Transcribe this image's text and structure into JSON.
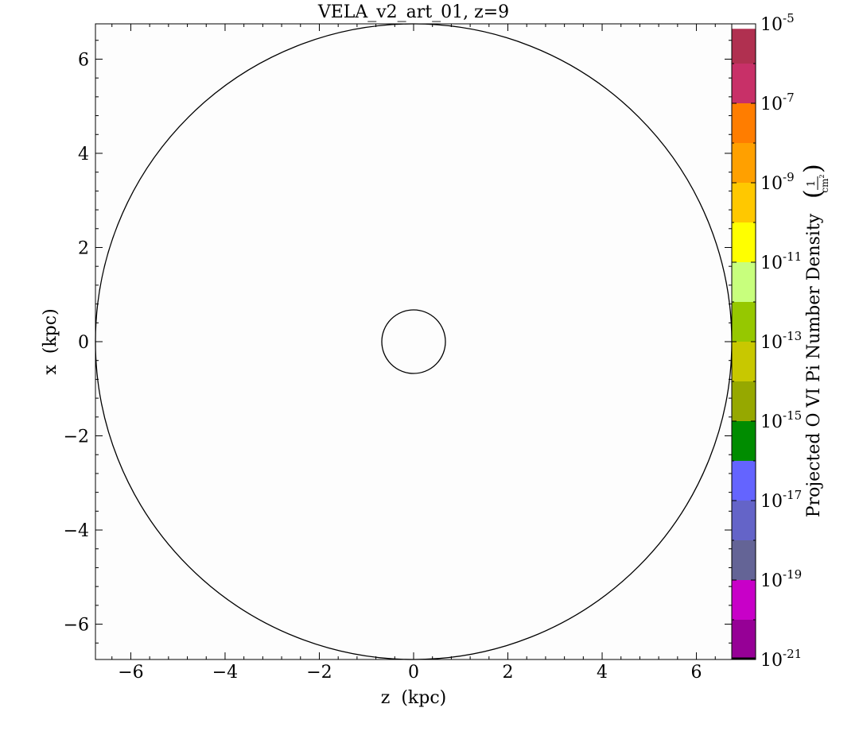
{
  "chart_data": {
    "type": "heatmap",
    "title": "VELA_v2_art_01, z=9",
    "xlabel": "z  (kpc)",
    "ylabel": "x  (kpc)",
    "xlim": [
      -6.75,
      6.75
    ],
    "ylim": [
      -6.75,
      6.75
    ],
    "x_ticks": [
      -6,
      -4,
      -2,
      0,
      2,
      4,
      6
    ],
    "y_ticks": [
      -6,
      -4,
      -2,
      0,
      2,
      4,
      6
    ],
    "x_tick_labels": [
      "−6",
      "−4",
      "−2",
      "0",
      "2",
      "4",
      "6"
    ],
    "y_tick_labels": [
      "−6",
      "−4",
      "−2",
      "0",
      "2",
      "4",
      "6"
    ],
    "minor_step": 0.4,
    "circles": [
      {
        "cx": 0,
        "cy": 0,
        "r": 6.75
      },
      {
        "cx": 0,
        "cy": 0,
        "r": 0.675
      }
    ],
    "field_color": "#fdfdfd",
    "grid": false,
    "colorbar": {
      "label": "Projected O VI Pi Number Density",
      "unit_numerator": "1",
      "unit_denominator": "cm",
      "unit_denominator_exponent": "2",
      "scale": "log",
      "vmin_exp": -21,
      "vmax_exp": -5,
      "tick_exponents": [
        -5,
        -7,
        -9,
        -11,
        -13,
        -15,
        -17,
        -19,
        -21
      ],
      "tick_base": "10",
      "tick_sup": [
        "-5",
        "-7",
        "-9",
        "-11",
        "-13",
        "-15",
        "-17",
        "-19",
        "-21"
      ],
      "bands": [
        {
          "from": -5.125,
          "to": -6,
          "color": "#b03050"
        },
        {
          "from": -6,
          "to": -7,
          "color": "#c83068"
        },
        {
          "from": -7,
          "to": -8,
          "color": "#ff7d00"
        },
        {
          "from": -8,
          "to": -9,
          "color": "#ffa000"
        },
        {
          "from": -9,
          "to": -10,
          "color": "#ffc800"
        },
        {
          "from": -10,
          "to": -11,
          "color": "#ffff00"
        },
        {
          "from": -11,
          "to": -12,
          "color": "#c8ff7d"
        },
        {
          "from": -12,
          "to": -13,
          "color": "#96c800"
        },
        {
          "from": -13,
          "to": -14,
          "color": "#c8c800"
        },
        {
          "from": -14,
          "to": -15,
          "color": "#96a800"
        },
        {
          "from": -15,
          "to": -16,
          "color": "#008c00"
        },
        {
          "from": -16,
          "to": -17,
          "color": "#6464ff"
        },
        {
          "from": -17,
          "to": -18,
          "color": "#6464c8"
        },
        {
          "from": -18,
          "to": -19,
          "color": "#646496"
        },
        {
          "from": -19,
          "to": -20,
          "color": "#c800c8"
        },
        {
          "from": -20,
          "to": -20.95,
          "color": "#960096"
        },
        {
          "from": -20.95,
          "to": -21,
          "color": "#000000"
        }
      ]
    }
  }
}
